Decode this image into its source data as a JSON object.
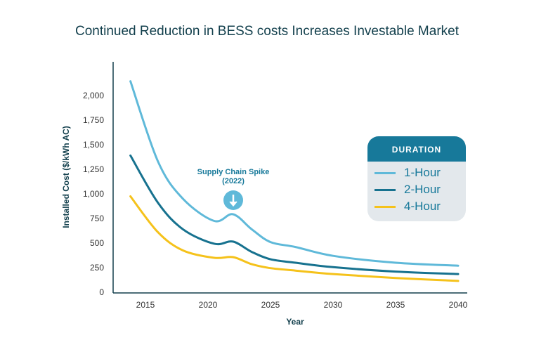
{
  "chart_data": {
    "type": "line",
    "title": "Continued Reduction in BESS costs Increases Investable Market",
    "xlabel": "Year",
    "ylabel": "Installed Cost ($/kWh AC)",
    "xlim": [
      2012.0,
      2041.0
    ],
    "ylim": [
      0,
      2300
    ],
    "x_ticks": [
      "2015",
      "2020",
      "2025",
      "2030",
      "2035",
      "2040"
    ],
    "y_ticks": [
      "0",
      "250",
      "500",
      "750",
      "1,000",
      "1,250",
      "1,500",
      "1,750",
      "2,000"
    ],
    "grid": false,
    "legend": {
      "title": "DURATION",
      "placement": "right"
    },
    "annotation": {
      "line1": "Supply Chain Spike",
      "line2": "(2022)",
      "x": 2022,
      "icon": "arrow-down-icon"
    },
    "series": [
      {
        "name": "1-Hour",
        "color": "#5fb9d9",
        "x": [
          2013.8,
          2016,
          2018,
          2020.5,
          2022,
          2023.5,
          2025,
          2027,
          2030,
          2035,
          2040
        ],
        "y": [
          2145,
          1330,
          950,
          725,
          793,
          640,
          510,
          460,
          370,
          300,
          270
        ]
      },
      {
        "name": "2-Hour",
        "color": "#17728f",
        "x": [
          2013.8,
          2016,
          2018,
          2020.5,
          2022,
          2023.5,
          2025,
          2027,
          2030,
          2035,
          2040
        ],
        "y": [
          1390,
          910,
          640,
          493,
          515,
          410,
          335,
          300,
          255,
          210,
          185
        ]
      },
      {
        "name": "4-Hour",
        "color": "#f5c21b",
        "x": [
          2013.8,
          2016,
          2018,
          2020.5,
          2022,
          2023.5,
          2025,
          2027,
          2030,
          2035,
          2040
        ],
        "y": [
          975,
          610,
          425,
          350,
          357,
          285,
          245,
          220,
          185,
          145,
          115
        ]
      }
    ]
  }
}
